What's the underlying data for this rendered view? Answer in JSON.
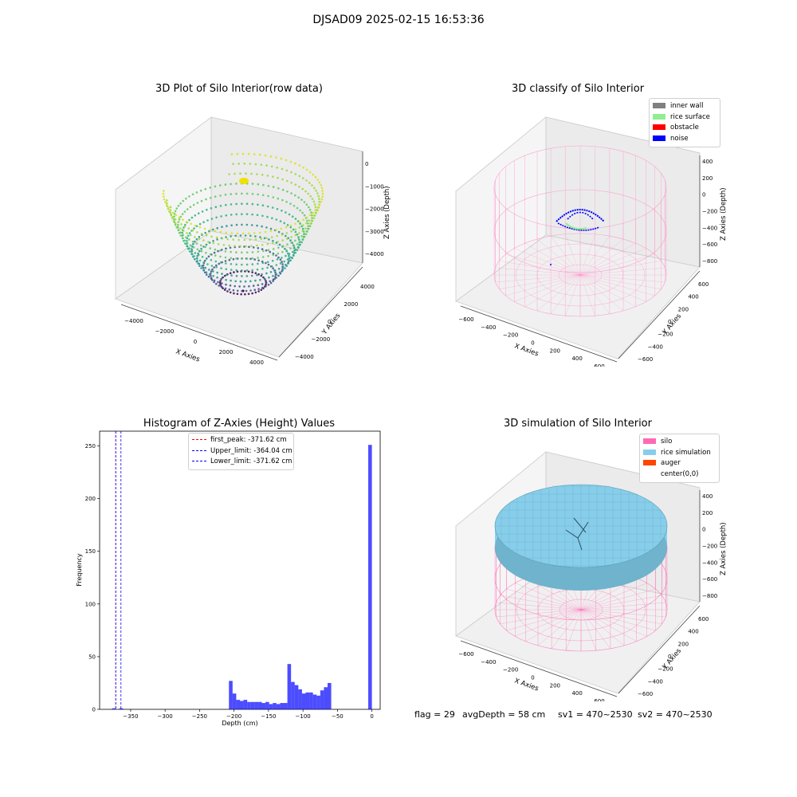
{
  "figure_title": "DJSAD09 2025-02-15 16:53:36",
  "panel_titles": {
    "raw": "3D Plot of Silo Interior(row data)",
    "classify": "3D classify of Silo Interior",
    "hist": "Histogram of Z-Axies (Height) Values",
    "sim": "3D simulation of Silo Interior"
  },
  "axis_labels": {
    "x": "X Axies",
    "y": "Y Axies",
    "z": "Z Axies (Depth)"
  },
  "raw_ticks": {
    "x": [
      "−4000",
      "−2000",
      "0",
      "2000",
      "4000"
    ],
    "y": [
      "−4000",
      "−2000",
      "0",
      "2000",
      "4000"
    ],
    "z": [
      "0",
      "−1000",
      "−2000",
      "−3000",
      "−4000"
    ]
  },
  "small_ticks": {
    "x": [
      "−600",
      "−400",
      "−200",
      "0",
      "200",
      "400",
      "600"
    ],
    "y": [
      "−600",
      "−400",
      "−200",
      "0",
      "200",
      "400",
      "600"
    ],
    "z": [
      "400",
      "200",
      "0",
      "−200",
      "−400",
      "−600",
      "−800"
    ]
  },
  "legend_classify": [
    {
      "label": "inner wall",
      "color": "#808080"
    },
    {
      "label": "rice surface",
      "color": "#90ee90"
    },
    {
      "label": "obstacle",
      "color": "#ff0000"
    },
    {
      "label": "noise",
      "color": "#0000ff"
    }
  ],
  "legend_sim": [
    {
      "label": "silo",
      "color": "#ff69b4"
    },
    {
      "label": "rice simulation",
      "color": "#87ceeb"
    },
    {
      "label": "auger",
      "color": "#ff4500"
    },
    {
      "label": "center(0,0)",
      "color": ""
    }
  ],
  "info_line": {
    "flag": "flag = 29",
    "avg": "avgDepth = 58 cm",
    "sv1": "sv1 = 470~2530",
    "sv2": "sv2 = 470~2530"
  },
  "chart_data": [
    {
      "type": "histogram",
      "title": "Histogram of Z-Axies (Height) Values",
      "xlabel": "Depth (cm)",
      "ylabel": "Frequency",
      "xlim": [
        -395,
        12
      ],
      "ylim": [
        0,
        264
      ],
      "xticks": [
        -350,
        -300,
        -250,
        -200,
        -150,
        -100,
        -50,
        0
      ],
      "xtick_labels": [
        "−350",
        "−300",
        "−250",
        "−200",
        "−150",
        "−100",
        "−50",
        "0"
      ],
      "yticks": [
        0,
        50,
        100,
        150,
        200,
        250
      ],
      "ytick_labels": [
        "0",
        "50",
        "100",
        "150",
        "200",
        "250"
      ],
      "bar_color": "#0000ff",
      "bin_width": 5.3,
      "bins": [
        {
          "x": -376.9,
          "count": 1
        },
        {
          "x": -366.3,
          "count": 1
        },
        {
          "x": -207.4,
          "count": 27
        },
        {
          "x": -202.1,
          "count": 15
        },
        {
          "x": -196.8,
          "count": 9
        },
        {
          "x": -191.5,
          "count": 8
        },
        {
          "x": -186.2,
          "count": 9
        },
        {
          "x": -180.9,
          "count": 7
        },
        {
          "x": -175.6,
          "count": 7
        },
        {
          "x": -170.3,
          "count": 7
        },
        {
          "x": -165.0,
          "count": 7
        },
        {
          "x": -159.7,
          "count": 6
        },
        {
          "x": -154.4,
          "count": 7
        },
        {
          "x": -149.1,
          "count": 5
        },
        {
          "x": -143.8,
          "count": 6
        },
        {
          "x": -138.5,
          "count": 5
        },
        {
          "x": -133.2,
          "count": 6
        },
        {
          "x": -127.9,
          "count": 6
        },
        {
          "x": -122.6,
          "count": 43
        },
        {
          "x": -117.3,
          "count": 26
        },
        {
          "x": -112.0,
          "count": 23
        },
        {
          "x": -106.7,
          "count": 19
        },
        {
          "x": -101.4,
          "count": 15
        },
        {
          "x": -96.1,
          "count": 16
        },
        {
          "x": -90.8,
          "count": 16
        },
        {
          "x": -85.5,
          "count": 14
        },
        {
          "x": -80.2,
          "count": 13
        },
        {
          "x": -74.9,
          "count": 18
        },
        {
          "x": -69.6,
          "count": 21
        },
        {
          "x": -64.3,
          "count": 25
        },
        {
          "x": -5.3,
          "count": 251
        }
      ],
      "vlines": [
        {
          "name": "first_peak: -371.62 cm",
          "x": -371.62,
          "color": "#ff0000"
        },
        {
          "name": "Upper_limit: -364.04 cm",
          "x": -364.04,
          "color": "#0000ff"
        },
        {
          "name": "Lower_limit: -371.62 cm",
          "x": -371.62,
          "color": "#0000ff"
        }
      ]
    }
  ]
}
